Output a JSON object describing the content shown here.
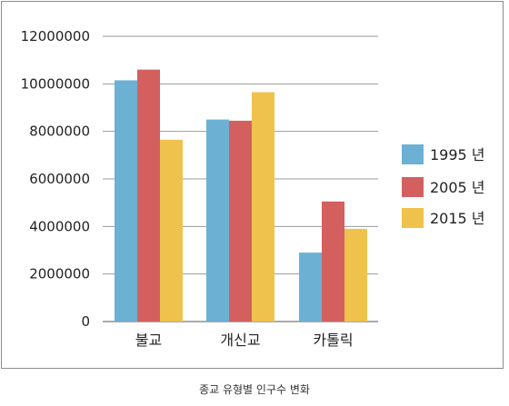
{
  "caption": "종교 유형별 인구수 변화",
  "chart_data": {
    "type": "bar",
    "categories": [
      "불교",
      "개신교",
      "카톨릭"
    ],
    "series": [
      {
        "name": "1995 년",
        "color": "#6cb1d3",
        "values": [
          10150000,
          8500000,
          2900000
        ]
      },
      {
        "name": "2005 년",
        "color": "#d3605f",
        "values": [
          10600000,
          8450000,
          5050000
        ]
      },
      {
        "name": "2015 년",
        "color": "#eec24d",
        "values": [
          7650000,
          9650000,
          3900000
        ]
      }
    ],
    "y_ticks": [
      {
        "value": 0,
        "label": "0"
      },
      {
        "value": 2000000,
        "label": "2000000"
      },
      {
        "value": 4000000,
        "label": "4000000"
      },
      {
        "value": 6000000,
        "label": "6000000"
      },
      {
        "value": 8000000,
        "label": "8000000"
      },
      {
        "value": 10000000,
        "label": "10000000"
      },
      {
        "value": 12000000,
        "label": "12000000"
      }
    ],
    "ylim": [
      0,
      12000000
    ],
    "grid": true,
    "legend_position": "right",
    "title": "",
    "xlabel": "",
    "ylabel": ""
  }
}
